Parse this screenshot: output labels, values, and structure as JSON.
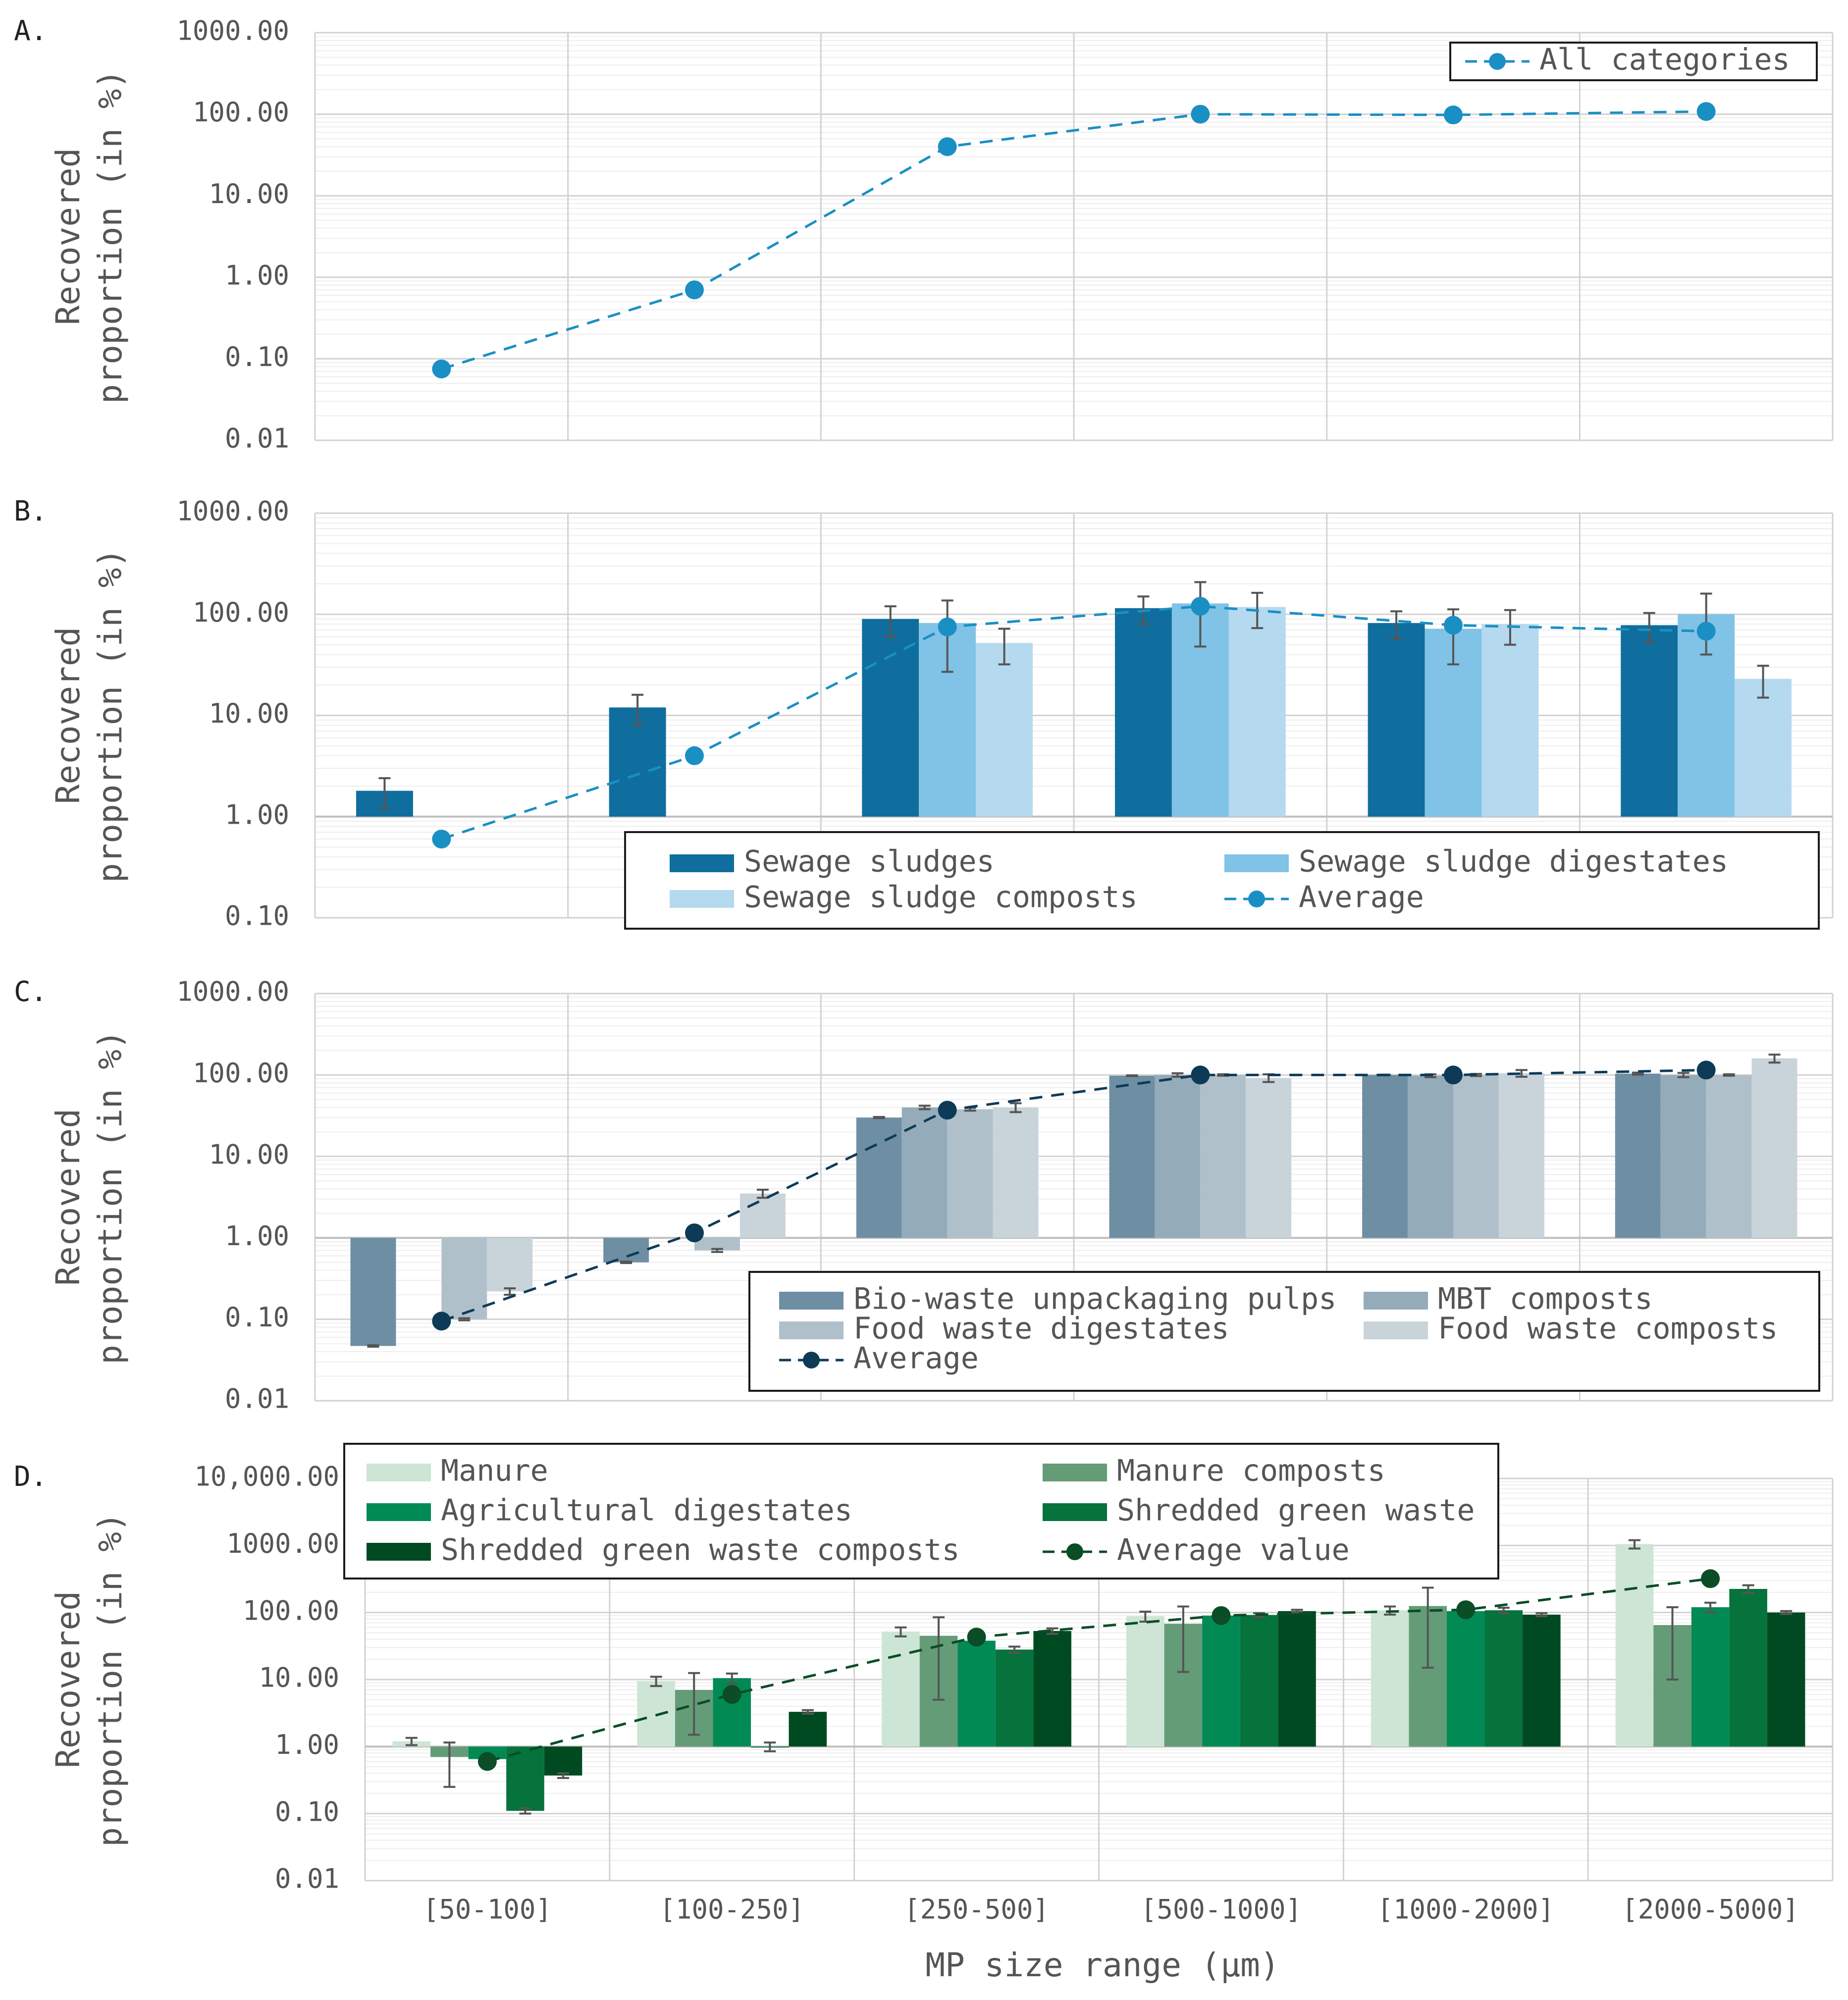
{
  "figure": {
    "xlabel": "MP size range (µm)",
    "categories": [
      "[50-100]",
      "[100-250]",
      "[250-500]",
      "[500-1000]",
      "[1000-2000]",
      "[2000-5000]"
    ]
  },
  "chart_data": [
    {
      "panel": "A.",
      "type": "line",
      "scale": "log",
      "ylabel": [
        "Recovered",
        "proportion (in %)"
      ],
      "ylim": [
        0.01,
        1000
      ],
      "yticks": [
        "0.01",
        "0.10",
        "1.00",
        "10.00",
        "100.00",
        "1000.00"
      ],
      "categories": [
        "[50-100]",
        "[100-250]",
        "[250-500]",
        "[500-1000]",
        "[1000-2000]",
        "[2000-5000]"
      ],
      "series": [
        {
          "name": "All categories",
          "values": [
            0.075,
            0.7,
            40,
            100,
            98,
            108
          ],
          "color": "#1a8fc4"
        }
      ],
      "legend": "top-right"
    },
    {
      "panel": "B.",
      "type": "bar",
      "scale": "log",
      "ylabel": [
        "Recovered",
        "proportion (in %)"
      ],
      "ylim": [
        0.1,
        1000
      ],
      "yticks": [
        "0.10",
        "1.00",
        "10.00",
        "100.00",
        "1000.00"
      ],
      "categories": [
        "[50-100]",
        "[100-250]",
        "[250-500]",
        "[500-1000]",
        "[1000-2000]",
        "[2000-5000]"
      ],
      "series": [
        {
          "name": "Sewage sludges",
          "color": "#0f6e9e",
          "values": [
            1.8,
            12,
            90,
            115,
            82,
            78
          ],
          "err": [
            0.6,
            4,
            30,
            35,
            25,
            25
          ]
        },
        {
          "name": "Sewage sludge digestates",
          "color": "#80c3e6",
          "values": [
            null,
            null,
            82,
            128,
            72,
            100
          ],
          "err": [
            null,
            null,
            55,
            80,
            40,
            60
          ]
        },
        {
          "name": "Sewage sludge composts",
          "color": "#b5d9ef",
          "values": [
            null,
            null,
            52,
            118,
            80,
            23
          ],
          "err": [
            null,
            null,
            20,
            45,
            30,
            8
          ]
        }
      ],
      "average": {
        "name": "Average",
        "color": "#1a8fc4",
        "values": [
          0.6,
          4,
          75,
          120,
          78,
          68
        ]
      },
      "legend_cols": [
        [
          "Sewage sludges",
          "Sewage sludge composts"
        ],
        [
          "Sewage sludge digestates",
          "Average"
        ]
      ],
      "legend": "bottom-right"
    },
    {
      "panel": "C.",
      "type": "bar",
      "scale": "log",
      "ylabel": [
        "Recovered",
        "proportion (in %)"
      ],
      "ylim": [
        0.01,
        1000
      ],
      "yticks": [
        "0.01",
        "0.10",
        "1.00",
        "10.00",
        "100.00",
        "1000.00"
      ],
      "categories": [
        "[50-100]",
        "[100-250]",
        "[250-500]",
        "[500-1000]",
        "[1000-2000]",
        "[2000-5000]"
      ],
      "series": [
        {
          "name": "Bio-waste unpackaging pulps",
          "color": "#6e8fa3",
          "values": [
            0.047,
            0.5,
            30,
            98,
            100,
            104
          ],
          "err": [
            0.001,
            0.01,
            0.5,
            1,
            1,
            3
          ]
        },
        {
          "name": "MBT composts",
          "color": "#94abba",
          "values": [
            null,
            null,
            40,
            100,
            98,
            100
          ],
          "err": [
            null,
            null,
            2,
            5,
            4,
            6
          ]
        },
        {
          "name": "Food waste digestates",
          "color": "#b0c0cb",
          "values": [
            0.1,
            0.7,
            38,
            100,
            100,
            100
          ],
          "err": [
            0.003,
            0.03,
            1.5,
            2,
            3,
            2
          ]
        },
        {
          "name": "Food waste composts",
          "color": "#c9d3da",
          "values": [
            0.22,
            3.5,
            40,
            92,
            105,
            160
          ],
          "err": [
            0.02,
            0.4,
            5,
            10,
            10,
            18
          ]
        }
      ],
      "average": {
        "name": "Average",
        "color": "#0d3b57",
        "values": [
          0.095,
          1.15,
          37,
          100,
          100,
          115
        ]
      },
      "legend_cols": [
        [
          "Bio-waste unpackaging pulps",
          "Food waste digestates",
          "Average"
        ],
        [
          "MBT composts",
          "Food waste composts"
        ]
      ],
      "legend": "bottom-right"
    },
    {
      "panel": "D.",
      "type": "bar",
      "scale": "log",
      "ylabel": [
        "Recovered",
        "proportion (in %)"
      ],
      "ylim": [
        0.01,
        10000
      ],
      "yticks": [
        "0.01",
        "0.10",
        "1.00",
        "10.00",
        "100.00",
        "1000.00",
        "10,000.00"
      ],
      "categories": [
        "[50-100]",
        "[100-250]",
        "[250-500]",
        "[500-1000]",
        "[1000-2000]",
        "[2000-5000]"
      ],
      "series": [
        {
          "name": "Manure",
          "color": "#cde5d4",
          "values": [
            1.2,
            9.5,
            52,
            88,
            108,
            1050
          ],
          "err": [
            0.15,
            1.5,
            8,
            15,
            15,
            150
          ]
        },
        {
          "name": "Manure composts",
          "color": "#649c78",
          "values": [
            0.7,
            7,
            45,
            68,
            125,
            65
          ],
          "err": [
            0.45,
            5.5,
            40,
            55,
            110,
            55
          ]
        },
        {
          "name": "Agricultural digestates",
          "color": "#028a55",
          "values": [
            0.65,
            10.5,
            38,
            90,
            105,
            120
          ],
          "err": [
            0.05,
            1.8,
            2,
            5,
            8,
            20
          ]
        },
        {
          "name": "Shredded green waste",
          "color": "#06723c",
          "values": [
            0.11,
            1.0,
            28,
            92,
            108,
            225
          ],
          "err": [
            0.01,
            0.15,
            3,
            6,
            10,
            30
          ]
        },
        {
          "name": "Shredded green waste composts",
          "color": "#004a21",
          "values": [
            0.37,
            3.3,
            53,
            105,
            93,
            100
          ],
          "err": [
            0.03,
            0.2,
            5,
            5,
            5,
            5
          ]
        }
      ],
      "average": {
        "name": "Average value",
        "color": "#0a4d26",
        "values": [
          0.6,
          6,
          43,
          90,
          110,
          320
        ]
      },
      "legend_cols": [
        [
          "Manure",
          "Agricultural digestates",
          "Shredded green waste composts"
        ],
        [
          "Manure composts",
          "Shredded green waste",
          "Average value"
        ]
      ],
      "legend": "top-left"
    }
  ]
}
